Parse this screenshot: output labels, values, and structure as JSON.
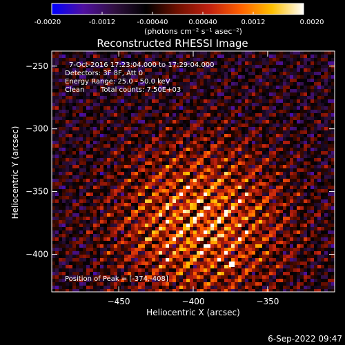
{
  "colorbar": {
    "ticks": [
      "-0.0020",
      "-0.0012",
      "-0.00040",
      "0.00040",
      "0.0012",
      "0.0020"
    ],
    "tick_values": [
      -0.002,
      -0.0012,
      -0.0004,
      0.0004,
      0.0012,
      0.002
    ],
    "range": [
      -0.002,
      0.002
    ],
    "unit_label": "(photons cm⁻² s⁻¹ asec⁻²)"
  },
  "chart_data": {
    "type": "heatmap",
    "title": "Reconstructed RHESSI Image",
    "xlabel": "Heliocentric X (arcsec)",
    "ylabel": "Heliocentric Y (arcsec)",
    "xlim": [
      -495,
      -305
    ],
    "ylim": [
      -430,
      -238
    ],
    "xticks": [
      -450,
      -400,
      -350
    ],
    "yticks": [
      -250,
      -300,
      -350,
      -400
    ],
    "peak": {
      "x": -374,
      "y": -408
    }
  },
  "annotations": {
    "time_range": "7-Oct-2016 17:23:04.000 to 17:29:04.000",
    "detectors": "Detectors: 3F 8F, Att 0",
    "energy": "Energy Range: 25.0 - 50.0 keV",
    "clean": "Clean",
    "total_counts": "Total counts: 7.50E+03",
    "peak_position": "Position of Peak = [-374,-408]"
  },
  "footer": {
    "timestamp": "6-Sep-2022 09:47"
  },
  "colors": {
    "colormap": [
      "#0000ff",
      "#5010a0",
      "#301040",
      "#000000",
      "#701000",
      "#c02010",
      "#ff6000",
      "#ffc000",
      "#ffffff"
    ]
  }
}
